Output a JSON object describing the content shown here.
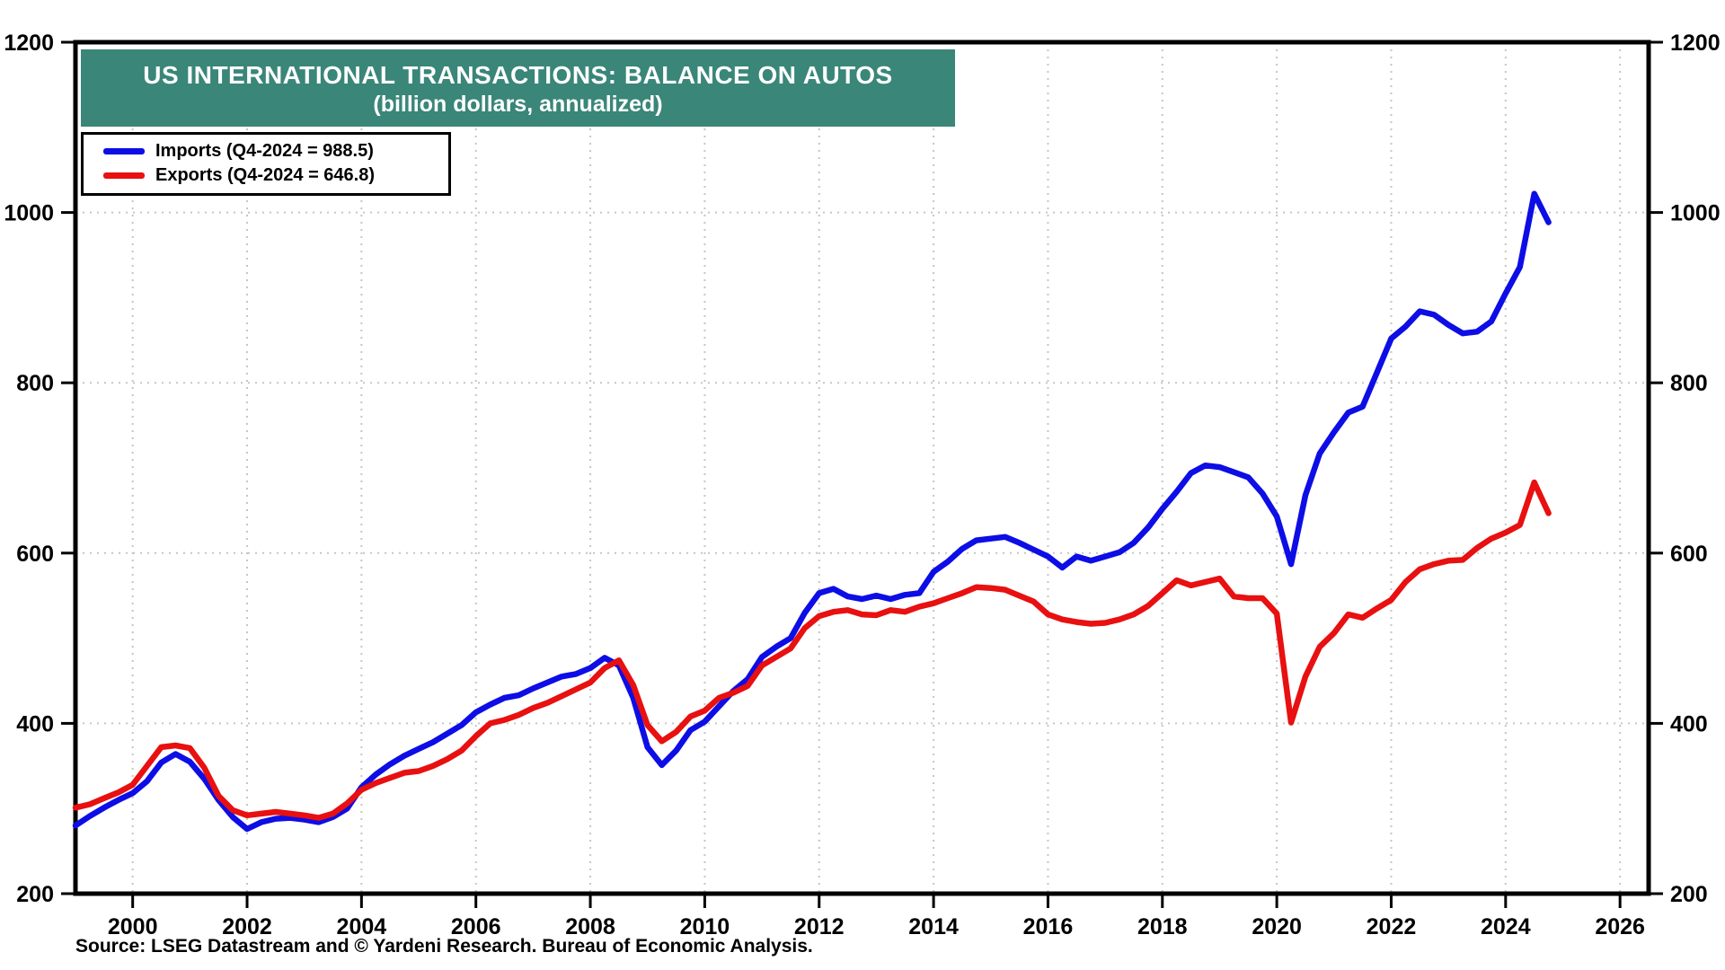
{
  "title": {
    "line1": "US INTERNATIONAL TRANSACTIONS: BALANCE ON AUTOS",
    "line2": "(billion dollars, annualized)"
  },
  "source": "Source: LSEG Datastream and © Yardeni Research. Bureau of Economic Analysis.",
  "colors": {
    "banner": "#3A8679",
    "imports": "#0D0DE6",
    "exports": "#E81010",
    "grid": "#c6c6c6",
    "axis": "#000000"
  },
  "legend": {
    "items": [
      {
        "label": "Imports (Q4-2024 = 988.5)",
        "color_key": "imports"
      },
      {
        "label": "Exports (Q4-2024 = 646.8)",
        "color_key": "exports"
      }
    ]
  },
  "chart_data": {
    "type": "line",
    "title": "US INTERNATIONAL TRANSACTIONS: BALANCE ON AUTOS",
    "subtitle": "(billion dollars, annualized)",
    "x_unit": "year, quarterly points starting 1999Q1",
    "x_start": 1999.0,
    "x_step": 0.25,
    "xlim": [
      1999.0,
      2026.5
    ],
    "ylim": [
      200,
      1200
    ],
    "x_ticks": [
      2000,
      2002,
      2004,
      2006,
      2008,
      2010,
      2012,
      2014,
      2016,
      2018,
      2020,
      2022,
      2024,
      2026
    ],
    "y_ticks": [
      200,
      400,
      600,
      800,
      1000,
      1200
    ],
    "grid_y_values": [
      400,
      600,
      800,
      1000
    ],
    "grid": true,
    "legend_position": "top-left",
    "series": [
      {
        "name": "Imports (Q4-2024 = 988.5)",
        "color_key": "imports",
        "last_point_label": "Q4-2024 = 988.5",
        "values": [
          280,
          291,
          301,
          310,
          318,
          332,
          354,
          364,
          355,
          335,
          310,
          290,
          276,
          284,
          288,
          289,
          287,
          284,
          290,
          300,
          325,
          340,
          352,
          362,
          370,
          378,
          388,
          398,
          413,
          422,
          430,
          433,
          441,
          448,
          455,
          458,
          465,
          477,
          468,
          430,
          372,
          351,
          368,
          392,
          402,
          420,
          438,
          452,
          478,
          490,
          500,
          530,
          553,
          558,
          549,
          546,
          550,
          546,
          551,
          553,
          578,
          590,
          605,
          615,
          617,
          619,
          612,
          604,
          596,
          583,
          596,
          591,
          596,
          601,
          612,
          630,
          652,
          672,
          694,
          703,
          701,
          695,
          689,
          670,
          643,
          587,
          668,
          717,
          742,
          765,
          772,
          812,
          852,
          866,
          884,
          880,
          868,
          858,
          860,
          872,
          905,
          936,
          1022,
          988.5
        ]
      },
      {
        "name": "Exports (Q4-2024 = 646.8)",
        "color_key": "exports",
        "last_point_label": "Q4-2024 = 646.8",
        "values": [
          301,
          305,
          312,
          319,
          328,
          350,
          372,
          374,
          371,
          348,
          315,
          298,
          292,
          294,
          296,
          294,
          292,
          289,
          294,
          306,
          322,
          330,
          336,
          342,
          344,
          350,
          358,
          368,
          385,
          400,
          404,
          410,
          418,
          424,
          432,
          440,
          448,
          465,
          474,
          445,
          398,
          379,
          390,
          408,
          415,
          430,
          436,
          444,
          468,
          478,
          488,
          512,
          526,
          531,
          533,
          528,
          527,
          533,
          531,
          537,
          541,
          547,
          553,
          560,
          559,
          557,
          550,
          543,
          528,
          522,
          519,
          517,
          518,
          522,
          528,
          538,
          553,
          568,
          562,
          566,
          570,
          549,
          547,
          547,
          529,
          401,
          455,
          490,
          506,
          528,
          524,
          535,
          545,
          566,
          581,
          587,
          591,
          592,
          606,
          617,
          624,
          633,
          683,
          646.8
        ]
      }
    ]
  }
}
